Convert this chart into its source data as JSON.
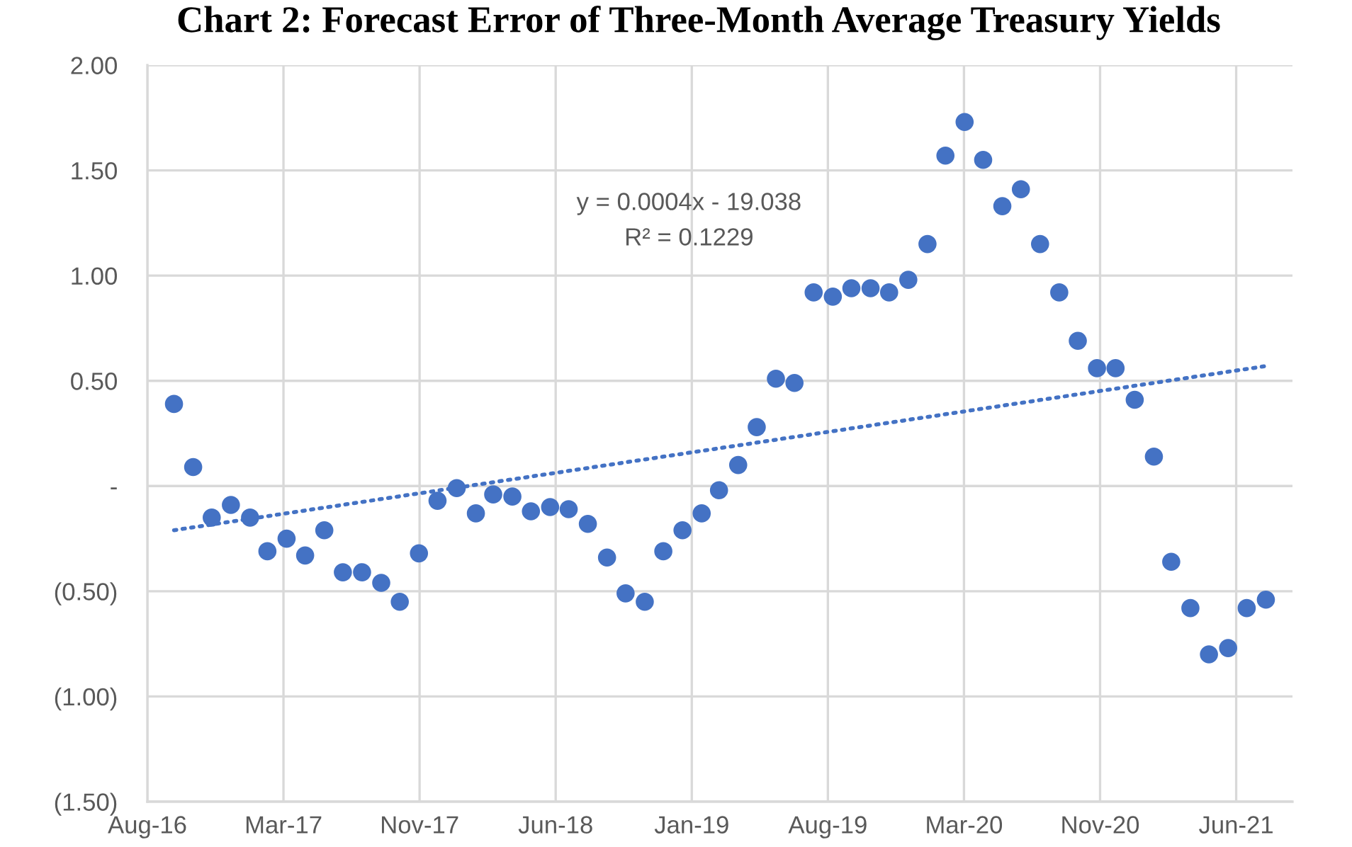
{
  "chart_data": {
    "type": "scatter",
    "title": "Chart 2: Forecast Error of Three-Month Average Treasury Yields",
    "annotations": [
      "y = 0.0004x - 19.038",
      "R² = 0.1229"
    ],
    "xlim": [
      "2016-08-18",
      "2021-09-12"
    ],
    "xticks": [
      {
        "value": "2016-08-18",
        "label": "Aug-16"
      },
      {
        "value": "2017-03-26",
        "label": "Mar-17"
      },
      {
        "value": "2017-11-01",
        "label": "Nov-17"
      },
      {
        "value": "2018-06-09",
        "label": "Jun-18"
      },
      {
        "value": "2019-01-15",
        "label": "Jan-19"
      },
      {
        "value": "2019-08-23",
        "label": "Aug-19"
      },
      {
        "value": "2020-03-30",
        "label": "Mar-20"
      },
      {
        "value": "2020-11-05",
        "label": "Nov-20"
      },
      {
        "value": "2021-06-13",
        "label": "Jun-21"
      }
    ],
    "ylim": [
      -1.5,
      2
    ],
    "yticks": [
      {
        "value": 2,
        "label": "2.00"
      },
      {
        "value": 1.5,
        "label": "1.50"
      },
      {
        "value": 1,
        "label": "1.00"
      },
      {
        "value": 0.5,
        "label": "0.50"
      },
      {
        "value": 0,
        "label": "-"
      },
      {
        "value": -0.5,
        "label": "(0.50)"
      },
      {
        "value": -1,
        "label": "(1.00)"
      },
      {
        "value": -1.5,
        "label": "(1.50)"
      }
    ],
    "grid": true,
    "marker": "circle",
    "series": [
      {
        "color": "#4472c4",
        "x": [
          "2016-09-30",
          "2016-10-31",
          "2016-11-30",
          "2016-12-31",
          "2017-01-31",
          "2017-02-28",
          "2017-03-31",
          "2017-04-30",
          "2017-05-31",
          "2017-06-30",
          "2017-07-31",
          "2017-08-31",
          "2017-09-30",
          "2017-10-31",
          "2017-11-30",
          "2017-12-31",
          "2018-01-31",
          "2018-02-28",
          "2018-03-31",
          "2018-04-30",
          "2018-05-31",
          "2018-06-30",
          "2018-07-31",
          "2018-08-31",
          "2018-09-30",
          "2018-10-31",
          "2018-11-30",
          "2018-12-31",
          "2019-01-31",
          "2019-02-28",
          "2019-03-31",
          "2019-04-30",
          "2019-05-31",
          "2019-06-30",
          "2019-07-31",
          "2019-08-31",
          "2019-09-30",
          "2019-10-31",
          "2019-11-30",
          "2019-12-31",
          "2020-01-31",
          "2020-02-29",
          "2020-03-31",
          "2020-04-30",
          "2020-05-31",
          "2020-06-30",
          "2020-07-31",
          "2020-08-31",
          "2020-09-30",
          "2020-10-31",
          "2020-11-30",
          "2020-12-31",
          "2021-01-31",
          "2021-02-28",
          "2021-03-31",
          "2021-04-30",
          "2021-05-31",
          "2021-06-30",
          "2021-07-31"
        ],
        "values": [
          0.39,
          0.09,
          -0.15,
          -0.09,
          -0.15,
          -0.31,
          -0.25,
          -0.33,
          -0.21,
          -0.41,
          -0.41,
          -0.46,
          -0.55,
          -0.32,
          -0.07,
          -0.01,
          -0.13,
          -0.04,
          -0.05,
          -0.12,
          -0.1,
          -0.11,
          -0.18,
          -0.34,
          -0.51,
          -0.55,
          -0.31,
          -0.21,
          -0.13,
          -0.02,
          0.1,
          0.28,
          0.51,
          0.49,
          0.92,
          0.9,
          0.94,
          0.94,
          0.92,
          0.98,
          1.15,
          1.57,
          1.73,
          1.55,
          1.33,
          1.41,
          1.15,
          0.92,
          0.69,
          0.56,
          0.56,
          0.41,
          0.14,
          -0.36,
          -0.58,
          -0.8,
          -0.77,
          -0.58,
          -0.54
        ]
      },
      {
        "type": "line",
        "color": "#4472c4",
        "line_style": "dotted",
        "marker": "none",
        "x": [
          "2016-09-30",
          "2021-07-31"
        ],
        "values": [
          -0.21,
          0.57
        ]
      }
    ]
  }
}
